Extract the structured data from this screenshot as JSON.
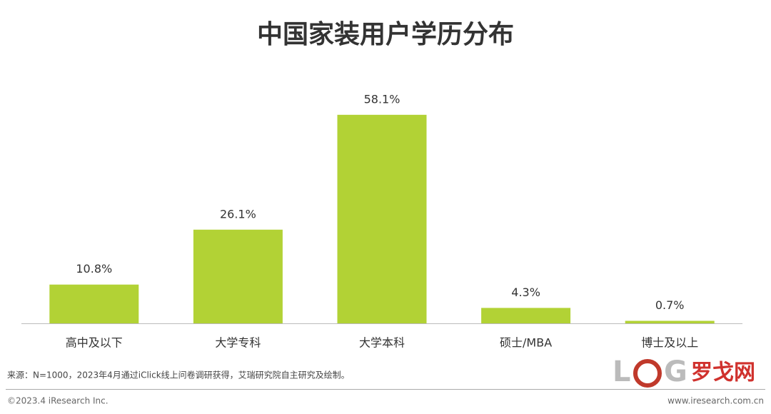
{
  "chart_data": {
    "type": "bar",
    "title": "中国家装用户学历分布",
    "categories": [
      "高中及以下",
      "大学专科",
      "大学本科",
      "硕士/MBA",
      "博士及以上"
    ],
    "values": [
      10.8,
      26.1,
      58.1,
      4.3,
      0.7
    ],
    "value_labels": [
      "10.8%",
      "26.1%",
      "58.1%",
      "4.3%",
      "0.7%"
    ],
    "color": "#b2d235",
    "ylim": [
      0,
      70
    ]
  },
  "footer": {
    "source": "来源：N=1000，2023年4月通过iClick线上问卷调研获得，艾瑞研究院自主研究及绘制。",
    "copyright": "©2023.4 iResearch Inc.",
    "url": "www.iresearch.com.cn"
  },
  "logo": {
    "letter1": "L",
    "letter2": "G",
    "name": "罗戈网"
  }
}
